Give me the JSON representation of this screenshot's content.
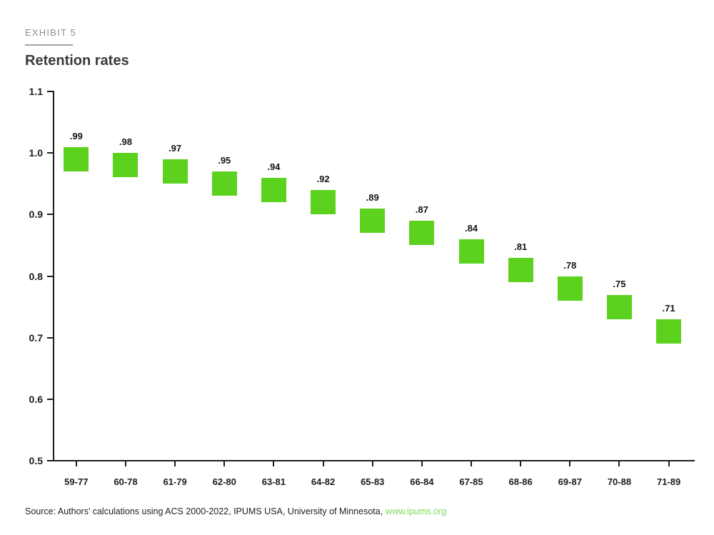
{
  "header": {
    "exhibit": "EXHIBIT 5",
    "title": "Retention rates"
  },
  "chart_data": {
    "type": "scatter",
    "marker_shape": "square",
    "title": "Retention rates",
    "categories": [
      "59-77",
      "60-78",
      "61-79",
      "62-80",
      "63-81",
      "64-82",
      "65-83",
      "66-84",
      "67-85",
      "68-86",
      "69-87",
      "70-88",
      "71-89"
    ],
    "values": [
      0.99,
      0.98,
      0.97,
      0.95,
      0.94,
      0.92,
      0.89,
      0.87,
      0.84,
      0.81,
      0.78,
      0.75,
      0.71
    ],
    "point_labels": [
      ".99",
      ".98",
      ".97",
      ".95",
      ".94",
      ".92",
      ".89",
      ".87",
      ".84",
      ".81",
      ".78",
      ".75",
      ".71"
    ],
    "ylim": [
      0.5,
      1.1
    ],
    "ytick_labels": [
      "1.1",
      "1.0",
      "0.9",
      "0.8",
      "0.7",
      "0.6",
      "0.5"
    ],
    "xlabel": "",
    "ylabel": "",
    "grid": false,
    "legend": "none",
    "marker_color": "#5cd21f",
    "axis_color": "#1d1d1b"
  },
  "source": {
    "prefix": "Source: Authors’ calculations using ACS 2000-2022, IPUMS USA, University of Minnesota,",
    "link_text": "www.ipums.org",
    "link_color": "#7ed957"
  }
}
